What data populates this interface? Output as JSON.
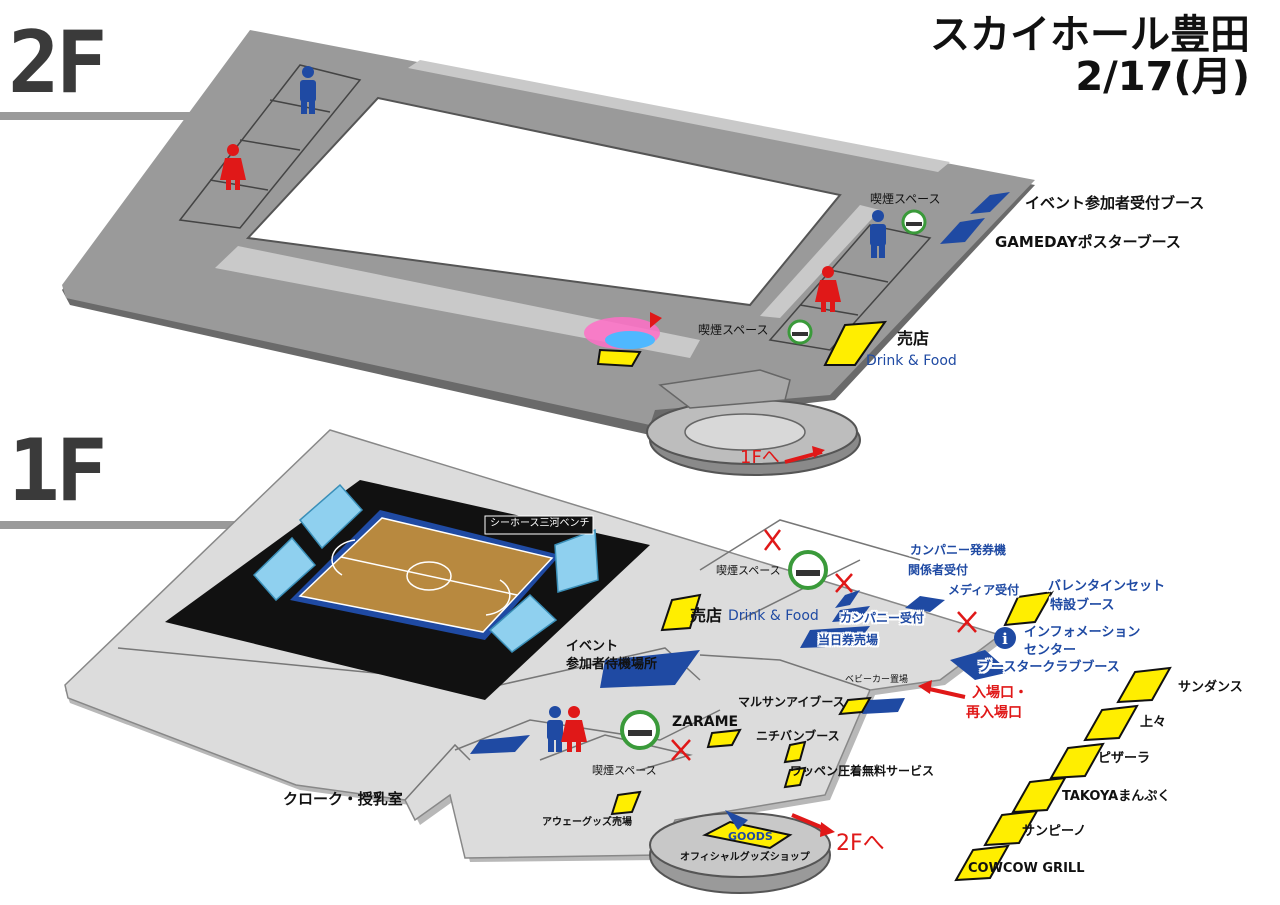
{
  "title": {
    "venue": "スカイホール豊田",
    "date": "2/17(月)"
  },
  "floors": {
    "upper": "2F",
    "lower": "1F"
  },
  "floor2": {
    "smoking_area_1": "喫煙スペース",
    "smoking_area_2": "喫煙スペース",
    "event_booth": "イベント参加者受付ブース",
    "gameday_booth": "GAMEDAYポスターブース",
    "shop": "売店",
    "shop_sub": "Drink & Food",
    "to_1f": "1Fへ"
  },
  "floor1": {
    "bench_label": "シーホース三河ベンチ",
    "smoking_top": "喫煙スペース",
    "shop": "売店",
    "shop_sub": "Drink & Food",
    "company_ticket": "カンパニー発券機",
    "staff_reception": "関係者受付",
    "media_reception": "メディア受付",
    "company_reception": "カンパニー受付",
    "same_day_ticket": "当日券売場",
    "valentine_1": "バレンタインセット",
    "valentine_2": "特設ブース",
    "info_1": "インフォメーション",
    "info_2": "センター",
    "booster_club": "ブースタークラブブース",
    "event_waiting_1": "イベント",
    "event_waiting_2": "参加者待機場所",
    "stroller": "ベビーカー置場",
    "marusan": "マルサンアイブース",
    "entrance_1": "入場口・",
    "entrance_2": "再入場口",
    "zarame": "ZARAME",
    "nichiban": "ニチバンブース",
    "wappen": "ワッペン圧着無料サービス",
    "smoking_bottom": "喫煙スペース",
    "cloak": "クローク・授乳室",
    "away_goods": "アウェーグッズ売場",
    "goods": "GOODS",
    "official_shop": "オフィシャルグッズショップ",
    "to_2f": "2Fへ"
  },
  "food_stalls": [
    "サンダンス",
    "上々",
    "ピザーラ",
    "TAKOYAまんぷく",
    "サンピーノ",
    "COWCOW GRILL"
  ],
  "colors": {
    "floor_dark": "#8c8c8c",
    "floor_light": "#d9d9d9",
    "booth_blue": "#1f4aa3",
    "booth_yellow": "#ffee00",
    "court_wood": "#b8893f",
    "accent_red": "#e01818",
    "smoking_green": "#3a9a3a"
  }
}
